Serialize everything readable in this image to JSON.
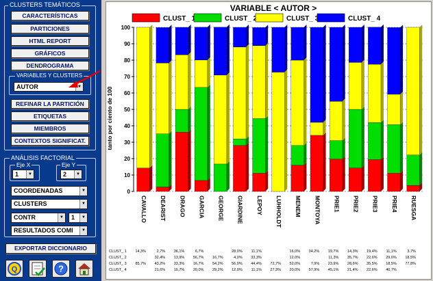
{
  "sidebar": {
    "group_clusters_title": "CLUSTERS TEMÁTICOS",
    "buttons": [
      "CARACTERÍSTICAS",
      "PARTICIONES",
      "HTML REPORT",
      "GRÁFICOS",
      "DENDROGRAMA"
    ],
    "variables_title": "VARIABLES Y CLUSTERS",
    "variable_selected": "AUTOR",
    "buttons2": [
      "REFINAR LA PARTICIÓN",
      "ETIQUETAS",
      "MIEMBROS",
      "CONTEXTOS SIGNIFICAT."
    ],
    "factorial_title": "ANÁLISIS FACTORIAL",
    "eje_x_label": "Eje X",
    "eje_y_label": "Eje Y",
    "eje_x_value": "1",
    "eje_y_value": "2",
    "coordenadas": "COORDENADAS",
    "clusters_combo": "CLUSTERS",
    "contr": "CONTR",
    "contr_num": "1",
    "resultados": "RESULTADOS COMI",
    "export_button": "EXPORTAR DICCIONARIO"
  },
  "icons": [
    "quit-icon",
    "checklist-icon",
    "help-icon",
    "home-icon"
  ],
  "chart_data": {
    "type": "bar",
    "stacked": true,
    "title": "VARIABLE < AUTOR >",
    "ylabel": "tanto por ciento de 100",
    "ylim": [
      0,
      100
    ],
    "yticks": [
      0,
      10,
      20,
      30,
      40,
      50,
      60,
      70,
      80,
      90,
      100
    ],
    "categories": [
      "CAVALLO",
      "DEARIST",
      "DRAGO",
      "GARCIA",
      "GEORGE",
      "GIARDINE",
      "LEPOY",
      "LUHHOLDT",
      "MENEM",
      "MONTOYA",
      "PRIE1",
      "PRIE2",
      "PRIE3",
      "PRIE4",
      "RUESGA"
    ],
    "series": [
      {
        "name": "CLUST_ 1",
        "color": "#ff0000",
        "values": [
          14.3,
          2.7,
          36.1,
          6.7,
          0,
          28.0,
          11.1,
          0,
          16.0,
          34.2,
          19.7,
          14.3,
          19.4,
          11.1,
          3.7
        ]
      },
      {
        "name": "CLUST_ 2",
        "color": "#00dd00",
        "values": [
          0,
          32.4,
          13.9,
          56.7,
          16.7,
          4.0,
          33.3,
          0,
          12.0,
          0,
          11.3,
          35.7,
          22.6,
          29.6,
          18.5
        ]
      },
      {
        "name": "CLUST_ 3",
        "color": "#ffff00",
        "values": [
          85.7,
          43.2,
          33.3,
          16.7,
          54.2,
          56.0,
          44.4,
          72.7,
          52.0,
          7.9,
          23.9,
          28.6,
          35.5,
          18.5,
          77.8
        ]
      },
      {
        "name": "CLUST_ 4",
        "color": "#0000ff",
        "values": [
          0,
          21.6,
          16.7,
          20.0,
          29.2,
          12.0,
          11.1,
          27.3,
          20.0,
          57.9,
          45.1,
          21.4,
          22.6,
          40.7,
          0
        ]
      }
    ],
    "legend_position": "top",
    "table_rows": [
      {
        "label": "CLUST_ 1",
        "cells": [
          "14,3%",
          "2,7%",
          "36,1%",
          "6,7%",
          "",
          "28,0%",
          "11,1%",
          "",
          "16,0%",
          "34,2%",
          "19,7%",
          "14,3%",
          "19,4%",
          "11,1%",
          "3,7%"
        ]
      },
      {
        "label": "CLUST_ 2",
        "cells": [
          "",
          "32,4%",
          "13,9%",
          "56,7%",
          "16,7%",
          "4,0%",
          "33,3%",
          "",
          "12,0%",
          "",
          "11,3%",
          "35,7%",
          "22,6%",
          "29,6%",
          "18,5%"
        ]
      },
      {
        "label": "CLUST_ 3",
        "cells": [
          "85,7%",
          "43,2%",
          "33,3%",
          "16,7%",
          "54,2%",
          "56,0%",
          "44,4%",
          "72,7%",
          "52,0%",
          "7,9%",
          "23,9%",
          "28,6%",
          "35,5%",
          "18,5%",
          "77,8%"
        ]
      },
      {
        "label": "CLUST_ 4",
        "cells": [
          "",
          "21,6%",
          "16,7%",
          "20,0%",
          "29,2%",
          "12,0%",
          "11,1%",
          "27,3%",
          "20,0%",
          "57,9%",
          "45,1%",
          "21,4%",
          "22,6%",
          "40,7%",
          ""
        ]
      }
    ]
  }
}
